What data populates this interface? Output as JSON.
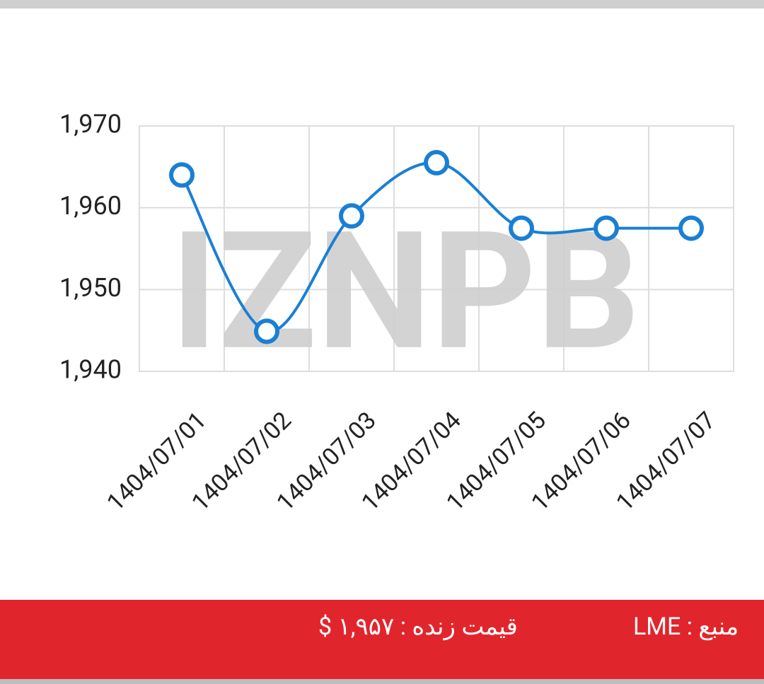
{
  "chart_data": {
    "type": "line",
    "watermark": "IZNPB",
    "categories": [
      "1404/07/01",
      "1404/07/02",
      "1404/07/03",
      "1404/07/04",
      "1404/07/05",
      "1404/07/06",
      "1404/07/07"
    ],
    "series": [
      {
        "name": "price",
        "color": "#1a7fd4",
        "values": [
          1964,
          1944.9,
          1959,
          1965.5,
          1957.5,
          1957.5,
          1957.5
        ]
      }
    ],
    "ylim": [
      1940,
      1970
    ],
    "yticks": [
      {
        "value": 1940,
        "label": "1,940"
      },
      {
        "value": 1950,
        "label": "1,950"
      },
      {
        "value": 1960,
        "label": "1,960"
      },
      {
        "value": 1970,
        "label": "1,970"
      }
    ],
    "grid": true
  },
  "footer": {
    "live_price": "قیمت زنده : ۱,۹۵۷ $",
    "source": "منبع : LME"
  }
}
